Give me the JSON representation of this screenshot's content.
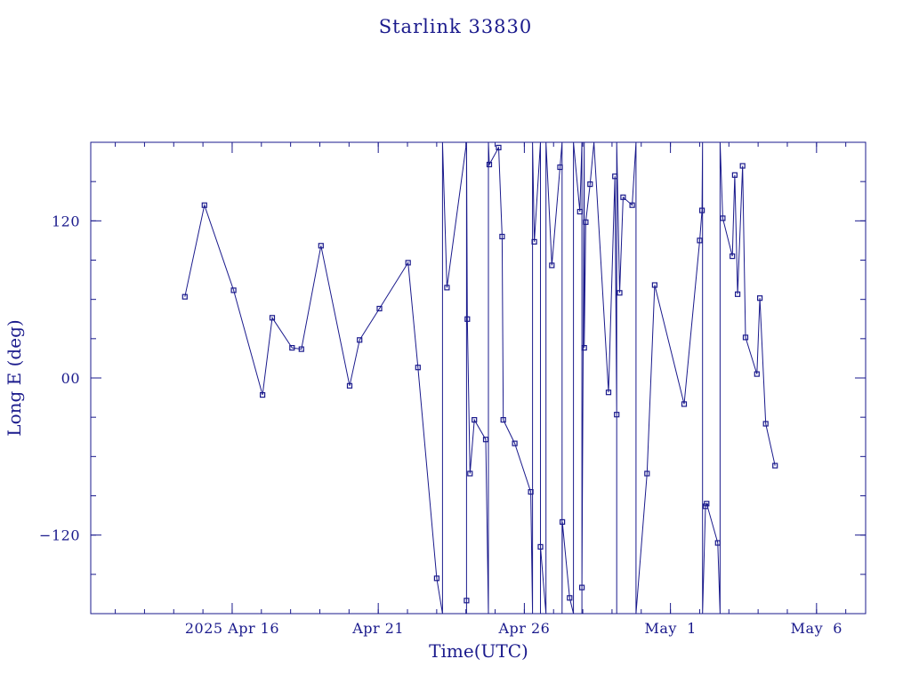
{
  "chart_data": {
    "type": "line",
    "title": "Starlink 33830",
    "xlabel": "Time(UTC)",
    "ylabel": "Long E (deg)",
    "x_unit": "days since 2025 Apr 16 00:00 UTC",
    "xlim": [
      -4.84,
      21.68
    ],
    "ylim": [
      -180,
      180
    ],
    "x_ticks": [
      {
        "x": 0,
        "label": "2025 Apr 16"
      },
      {
        "x": 5,
        "label": "Apr 21"
      },
      {
        "x": 10,
        "label": "Apr 26"
      },
      {
        "x": 15,
        "label": "May  1"
      },
      {
        "x": 20,
        "label": "May  6"
      }
    ],
    "y_ticks": [
      {
        "y": -120,
        "label": "−120"
      },
      {
        "y": 0,
        "label": "00"
      },
      {
        "y": 120,
        "label": "120"
      }
    ],
    "x_minor_step": 1,
    "y_minor_step": 30,
    "grid": false,
    "color": "#1a1a8c",
    "series": [
      {
        "name": "",
        "points": [
          {
            "x": -1.62,
            "y": 62
          },
          {
            "x": -0.95,
            "y": 132
          },
          {
            "x": 0.05,
            "y": 67
          },
          {
            "x": 1.04,
            "y": -13
          },
          {
            "x": 1.37,
            "y": 46
          },
          {
            "x": 2.05,
            "y": 23
          },
          {
            "x": 2.37,
            "y": 22
          },
          {
            "x": 3.04,
            "y": 101
          },
          {
            "x": 4.02,
            "y": -6
          },
          {
            "x": 4.36,
            "y": 29
          },
          {
            "x": 5.04,
            "y": 53
          },
          {
            "x": 6.02,
            "y": 88
          },
          {
            "x": 6.36,
            "y": 8
          },
          {
            "x": 7.0,
            "y": -153
          },
          {
            "x": 7.2,
            "y": -180
          },
          {
            "x": 7.2,
            "y": 180
          },
          {
            "x": 7.35,
            "y": 69
          },
          {
            "x": 8.02,
            "y": 180
          },
          {
            "x": 8.02,
            "y": -170
          },
          {
            "x": 8.02,
            "y": -180
          },
          {
            "x": 8.02,
            "y": 180
          },
          {
            "x": 8.05,
            "y": 45
          },
          {
            "x": 8.14,
            "y": -73
          },
          {
            "x": 8.29,
            "y": -32
          },
          {
            "x": 8.68,
            "y": -47
          },
          {
            "x": 8.77,
            "y": -180
          },
          {
            "x": 8.77,
            "y": 180
          },
          {
            "x": 8.8,
            "y": 163
          },
          {
            "x": 9.12,
            "y": 176
          },
          {
            "x": 9.24,
            "y": 108
          },
          {
            "x": 9.28,
            "y": -32
          },
          {
            "x": 9.67,
            "y": -50
          },
          {
            "x": 10.22,
            "y": -87
          },
          {
            "x": 10.28,
            "y": -180
          },
          {
            "x": 10.28,
            "y": 180
          },
          {
            "x": 10.34,
            "y": 104
          },
          {
            "x": 10.55,
            "y": 180
          },
          {
            "x": 10.55,
            "y": -180
          },
          {
            "x": 10.55,
            "y": -129
          },
          {
            "x": 10.74,
            "y": -180
          },
          {
            "x": 10.74,
            "y": 180
          },
          {
            "x": 10.94,
            "y": 86
          },
          {
            "x": 11.22,
            "y": 161
          },
          {
            "x": 11.29,
            "y": 180
          },
          {
            "x": 11.29,
            "y": -180
          },
          {
            "x": 11.3,
            "y": -110
          },
          {
            "x": 11.55,
            "y": -168
          },
          {
            "x": 11.68,
            "y": -180
          },
          {
            "x": 11.68,
            "y": 180
          },
          {
            "x": 11.9,
            "y": 127
          },
          {
            "x": 11.97,
            "y": 180
          },
          {
            "x": 11.97,
            "y": -180
          },
          {
            "x": 11.97,
            "y": -160
          },
          {
            "x": 12.05,
            "y": 180
          },
          {
            "x": 12.05,
            "y": 23
          },
          {
            "x": 12.1,
            "y": 119
          },
          {
            "x": 12.25,
            "y": 148
          },
          {
            "x": 12.38,
            "y": 180
          },
          {
            "x": 12.88,
            "y": -11
          },
          {
            "x": 13.1,
            "y": 154
          },
          {
            "x": 13.16,
            "y": -28
          },
          {
            "x": 13.16,
            "y": -180
          },
          {
            "x": 13.16,
            "y": 180
          },
          {
            "x": 13.26,
            "y": 65
          },
          {
            "x": 13.38,
            "y": 138
          },
          {
            "x": 13.69,
            "y": 132
          },
          {
            "x": 13.82,
            "y": 180
          },
          {
            "x": 13.82,
            "y": -180
          },
          {
            "x": 14.2,
            "y": -73
          },
          {
            "x": 14.46,
            "y": 71
          },
          {
            "x": 15.47,
            "y": -20
          },
          {
            "x": 16.0,
            "y": 105
          },
          {
            "x": 16.08,
            "y": 128
          },
          {
            "x": 16.1,
            "y": 180
          },
          {
            "x": 16.1,
            "y": -180
          },
          {
            "x": 16.2,
            "y": -98
          },
          {
            "x": 16.24,
            "y": -96
          },
          {
            "x": 16.62,
            "y": -126
          },
          {
            "x": 16.7,
            "y": -180
          },
          {
            "x": 16.7,
            "y": 180
          },
          {
            "x": 16.79,
            "y": 122
          },
          {
            "x": 17.12,
            "y": 93
          },
          {
            "x": 17.2,
            "y": 155
          },
          {
            "x": 17.3,
            "y": 64
          },
          {
            "x": 17.47,
            "y": 162
          },
          {
            "x": 17.57,
            "y": 31
          },
          {
            "x": 17.96,
            "y": 3
          },
          {
            "x": 18.06,
            "y": 61
          },
          {
            "x": 18.26,
            "y": -35
          },
          {
            "x": 18.58,
            "y": -67
          }
        ]
      }
    ]
  }
}
